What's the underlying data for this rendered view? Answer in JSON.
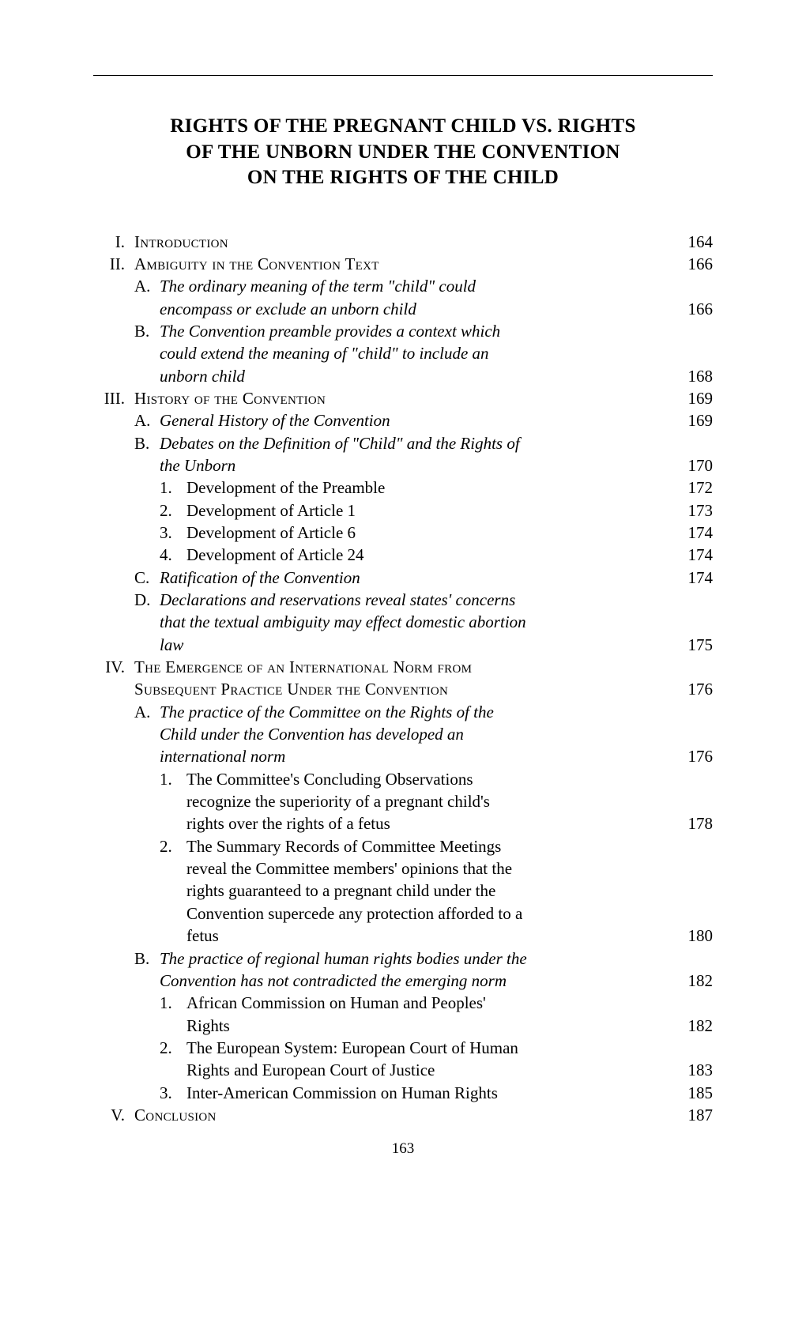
{
  "title_line1": "RIGHTS OF THE PREGNANT CHILD VS. RIGHTS",
  "title_line2": "OF THE UNBORN UNDER THE CONVENTION",
  "title_line3": "ON THE RIGHTS OF THE CHILD",
  "page_number": "163",
  "toc": {
    "I": {
      "roman": "I.",
      "label": "Introduction",
      "page": "164"
    },
    "II": {
      "roman": "II.",
      "label": "Ambiguity in the Convention Text",
      "page": "166"
    },
    "II_A": {
      "letter": "A.",
      "l1": "The ordinary meaning of the term \"child\" could",
      "l2": "encompass or exclude an unborn child",
      "page": "166"
    },
    "II_B": {
      "letter": "B.",
      "l1": "The Convention preamble provides a context which",
      "l2": "could extend the meaning of \"child\" to include an",
      "l3": "unborn child",
      "page": "168"
    },
    "III": {
      "roman": "III.",
      "label": "History of the Convention",
      "page": "169"
    },
    "III_A": {
      "letter": "A.",
      "label": "General History of the Convention",
      "page": "169"
    },
    "III_B": {
      "letter": "B.",
      "l1": "Debates on the Definition of \"Child\" and the Rights of",
      "l2": "the Unborn",
      "page": "170"
    },
    "III_B_1": {
      "num": "1.",
      "label": "Development of the Preamble",
      "page": "172"
    },
    "III_B_2": {
      "num": "2.",
      "label": "Development of Article 1",
      "page": "173"
    },
    "III_B_3": {
      "num": "3.",
      "label": "Development of Article 6",
      "page": "174"
    },
    "III_B_4": {
      "num": "4.",
      "label": "Development of Article 24",
      "page": "174"
    },
    "III_C": {
      "letter": "C.",
      "label": "Ratification of the Convention",
      "page": "174"
    },
    "III_D": {
      "letter": "D.",
      "l1": "Declarations and reservations reveal states' concerns",
      "l2": "that the textual ambiguity may effect domestic abortion",
      "l3": "law",
      "page": "175"
    },
    "IV": {
      "roman": "IV.",
      "l1": "The Emergence of an International Norm from",
      "l2": "Subsequent Practice Under the Convention",
      "page": "176"
    },
    "IV_A": {
      "letter": "A.",
      "l1": "The practice of the Committee on the Rights of the",
      "l2": "Child under the Convention has developed an",
      "l3": "international norm",
      "page": "176"
    },
    "IV_A_1": {
      "num": "1.",
      "l1": "The Committee's Concluding Observations",
      "l2": "recognize the superiority of a pregnant child's",
      "l3": "rights over the rights of a fetus",
      "page": "178"
    },
    "IV_A_2": {
      "num": "2.",
      "l1": "The Summary Records of Committee Meetings",
      "l2": "reveal the Committee members' opinions that the",
      "l3": "rights guaranteed to a pregnant child under the",
      "l4": "Convention supercede any protection afforded to a",
      "l5": "fetus",
      "page": "180"
    },
    "IV_B": {
      "letter": "B.",
      "l1": "The practice of regional human rights bodies under the",
      "l2": "Convention has not contradicted the emerging norm",
      "page": "182"
    },
    "IV_B_1": {
      "num": "1.",
      "l1": "African Commission on Human and Peoples'",
      "l2": "Rights",
      "page": "182"
    },
    "IV_B_2": {
      "num": "2.",
      "l1": "The European System: European Court of Human",
      "l2": "Rights and European Court of Justice",
      "page": "183"
    },
    "IV_B_3": {
      "num": "3.",
      "label": "Inter-American Commission on Human Rights",
      "page": "185"
    },
    "V": {
      "roman": "V.",
      "label": "Conclusion",
      "page": "187"
    }
  }
}
